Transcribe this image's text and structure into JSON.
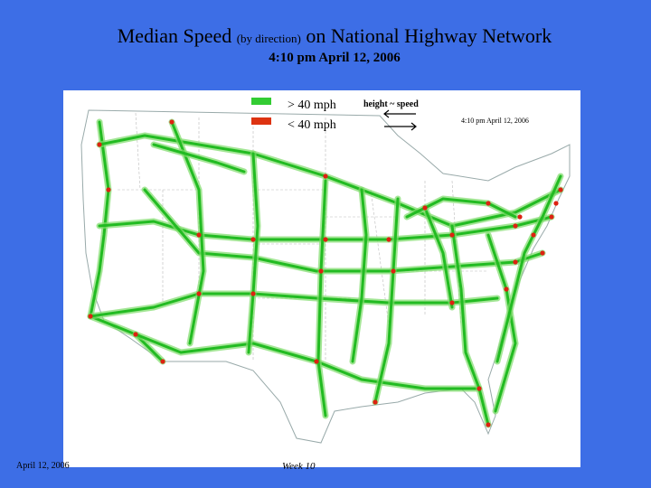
{
  "header": {
    "title_main": "Median Speed",
    "title_small": "(by direction)",
    "title_rest": "on National Highway Network",
    "subtitle": "4:10 pm April 12, 2006"
  },
  "legend": {
    "items": [
      "> 40 mph",
      "< 40 mph"
    ],
    "note": "height ~ speed",
    "timestamp": "4:10 pm April 12, 2006"
  },
  "footer": {
    "date": "April 12, 2006",
    "week": "Week 10"
  }
}
